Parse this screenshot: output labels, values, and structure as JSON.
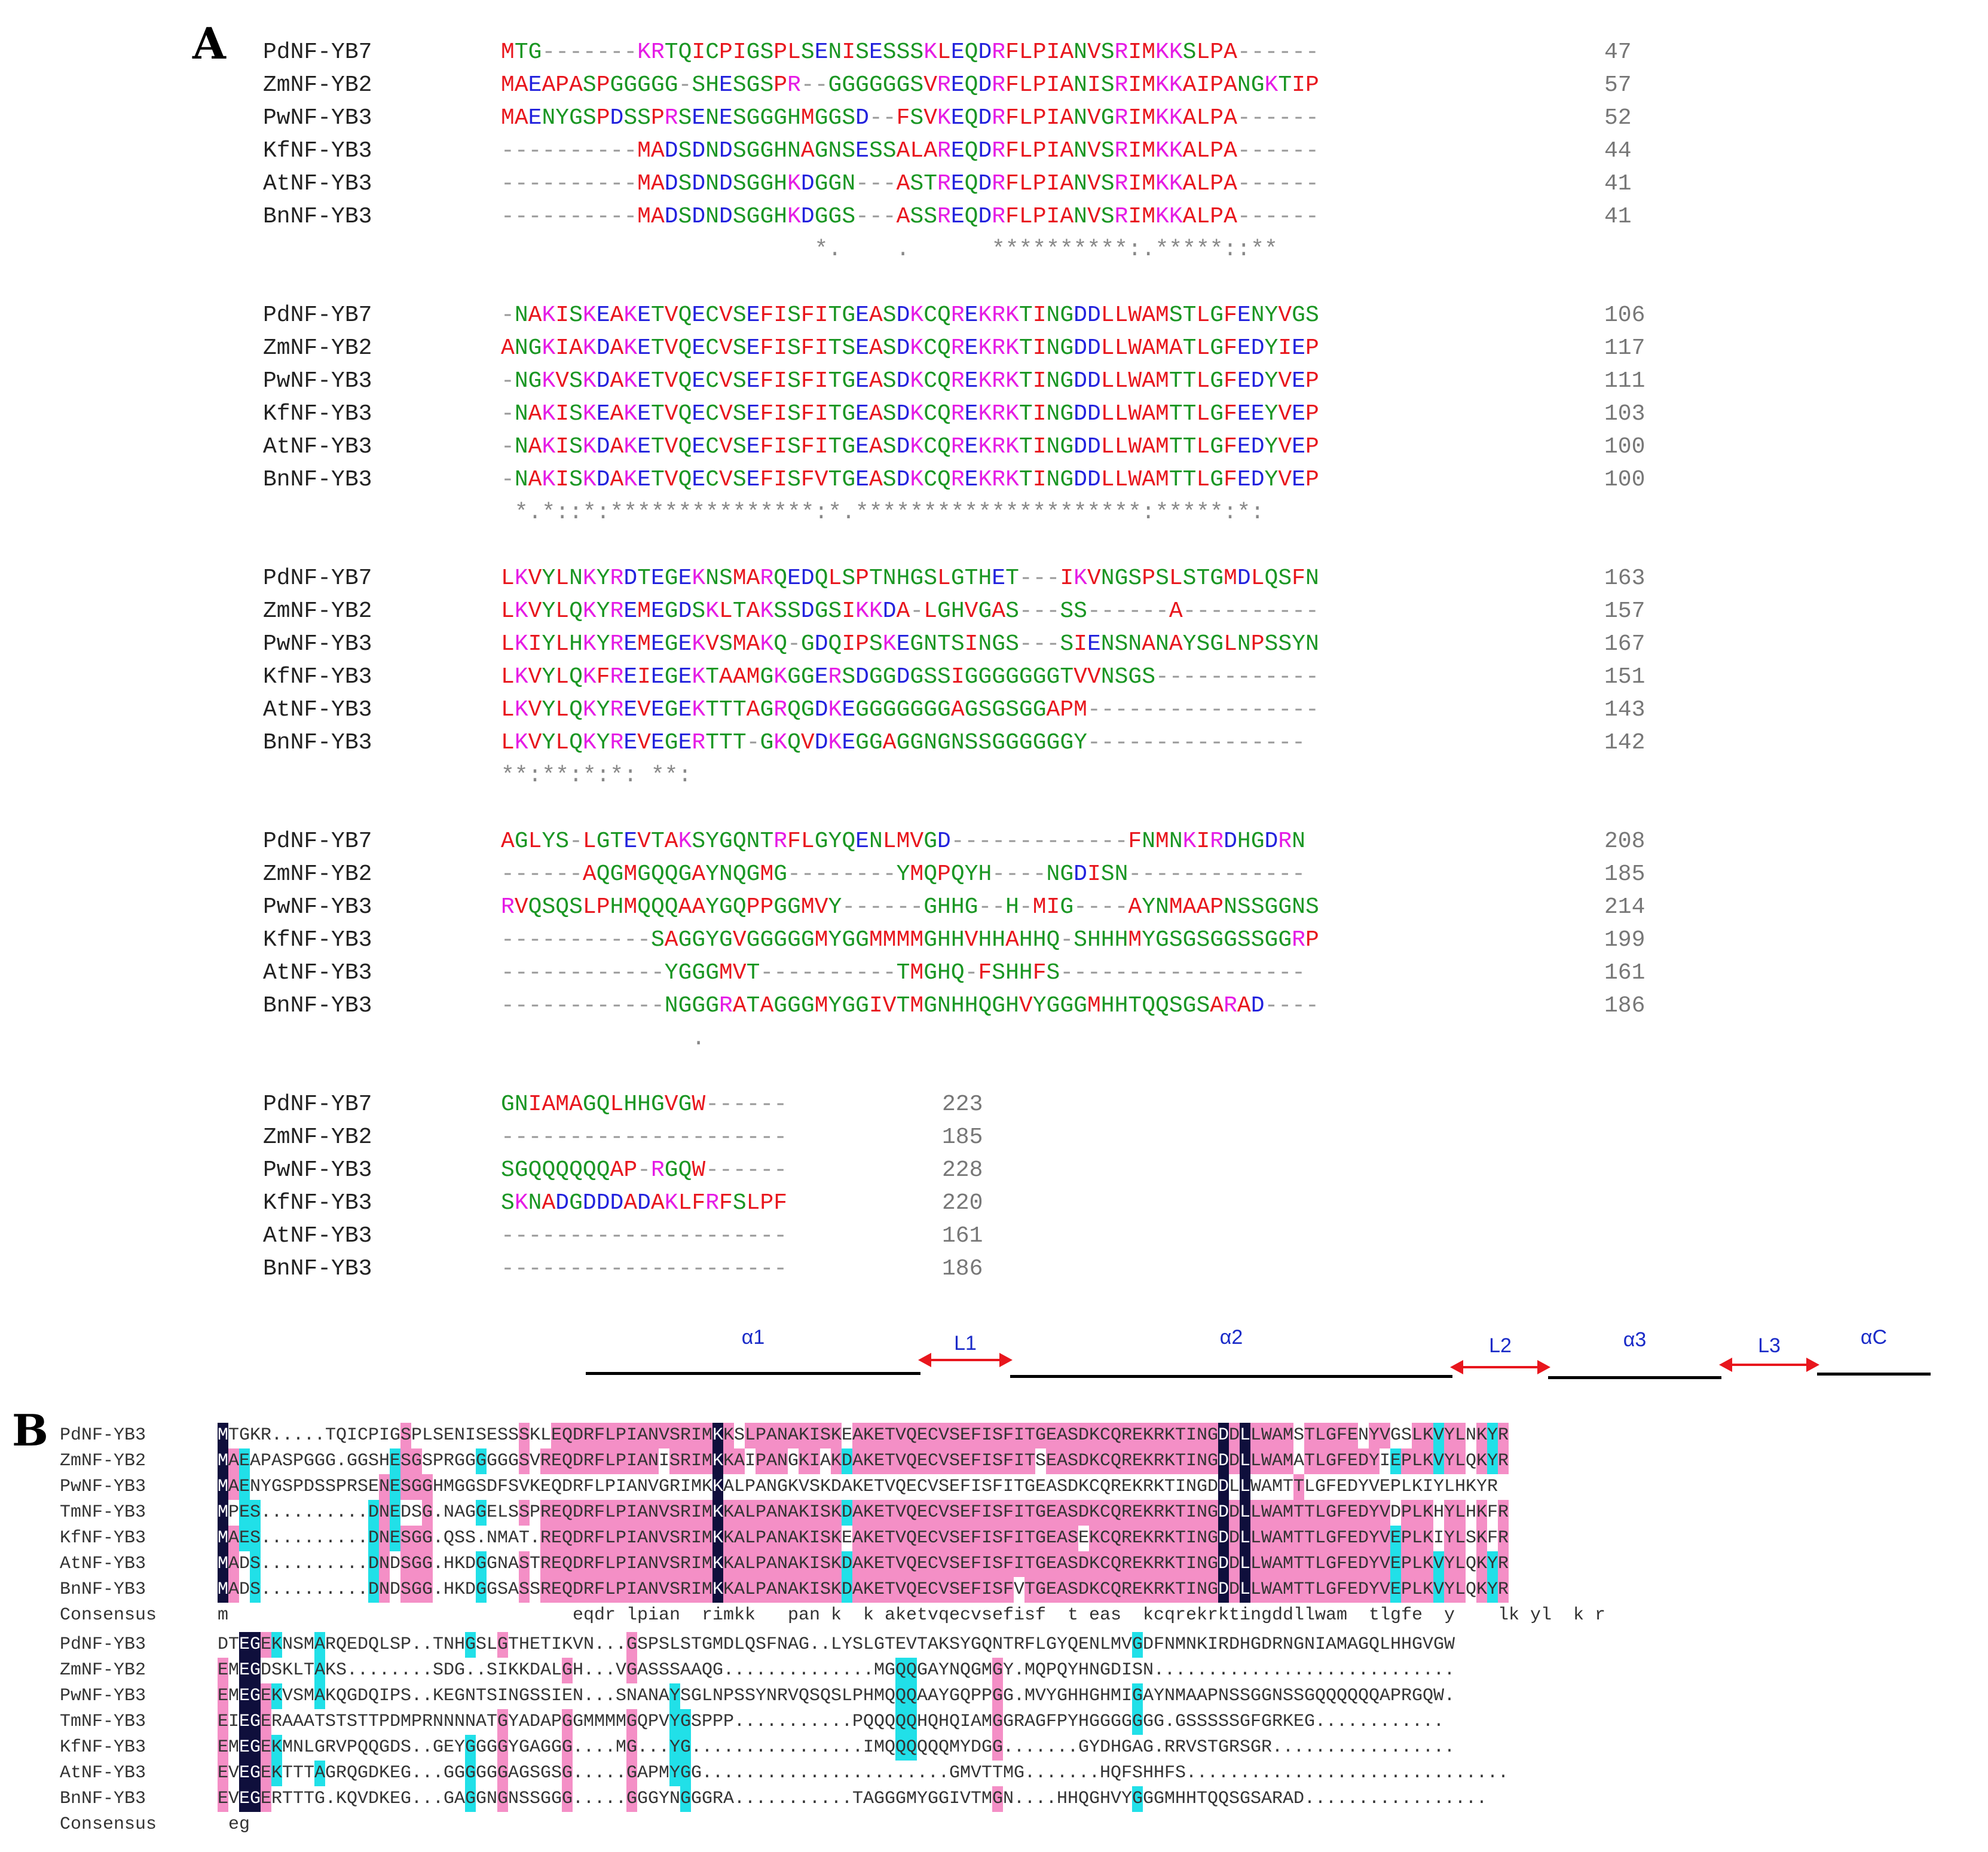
{
  "panel_a": {
    "label": "A",
    "blocks": [
      {
        "rows": [
          {
            "name": "PdNF-YB7",
            "seq": "MTG-------KRTQICPIGSPLSENISESSSKLEQDRFLPIANVSRIMKKSLPA------",
            "num": "47"
          },
          {
            "name": "ZmNF-YB2",
            "seq": "MAEAPASPGGGGG-SHESGSPR--GGGGGGSVREQDRFLPIANISRIMKKAIPANGKTIP",
            "num": "57"
          },
          {
            "name": "PwNF-YB3",
            "seq": "MAENYGSPDSSPRSENESGGGHMGGSD--FSVKEQDRFLPIANVGRIMKKALPA------",
            "num": "52"
          },
          {
            "name": "KfNF-YB3",
            "seq": "----------MADSDNDSGGHNAGNSESSALAREQDRFLPIANVSRIMKKALPA------",
            "num": "44"
          },
          {
            "name": "AtNF-YB3",
            "seq": "----------MADSDNDSGGHKDGGN---ASTREQDRFLPIANVSRIMKKALPA------",
            "num": "41"
          },
          {
            "name": "BnNF-YB3",
            "seq": "----------MADSDNDSGGHKDGGS---ASSREQDRFLPIANVSRIMKKALPA------",
            "num": "41"
          }
        ],
        "consensus": "                       *.    .      **********:.*****::**"
      },
      {
        "rows": [
          {
            "name": "PdNF-YB7",
            "seq": "-NAKISKEAKETVQECVSEFISFITGEASDKCQREKRKTINGDDLLWAMSTLGFENYVGS",
            "num": "106"
          },
          {
            "name": "ZmNF-YB2",
            "seq": "ANGKIAKDAKETVQECVSEFISFITSEASDKCQREKRKTINGDDLLWAMATLGFEDYIEP",
            "num": "117"
          },
          {
            "name": "PwNF-YB3",
            "seq": "-NGKVSKDAKETVQECVSEFISFITGEASDKCQREKRKTINGDDLLWAMTTLGFEDYVEP",
            "num": "111"
          },
          {
            "name": "KfNF-YB3",
            "seq": "-NAKISKEAKETVQECVSEFISFITGEASDKCQREKRKTINGDDLLWAMTTLGFEEYVEP",
            "num": "103"
          },
          {
            "name": "AtNF-YB3",
            "seq": "-NAKISKDAKETVQECVSEFISFITGEASDKCQREKRKTINGDDLLWAMTTLGFEDYVEP",
            "num": "100"
          },
          {
            "name": "BnNF-YB3",
            "seq": "-NAKISKDAKETVQECVSEFISFVTGEASDKCQREKRKTINGDDLLWAMTTLGFEDYVEP",
            "num": "100"
          }
        ],
        "consensus": " *.*::*:***************:*.*********************:*****:*:"
      },
      {
        "rows": [
          {
            "name": "PdNF-YB7",
            "seq": "LKVYLNKYRDTEGEKNSMARQEDQLSPTNHGSLGTHET---IKVNGSPSLSTGMDLQSFN",
            "num": "163"
          },
          {
            "name": "ZmNF-YB2",
            "seq": "LKVYLQKYREMEGDSKLTAKSSDGSIKKDA-LGHVGAS---SS------A----------",
            "num": "157"
          },
          {
            "name": "PwNF-YB3",
            "seq": "LKIYLHKYREMEGEKVSMAKQ-GDQIPSKEGNTSINGS---SIENSNANAYSGLNPSSYN",
            "num": "167"
          },
          {
            "name": "KfNF-YB3",
            "seq": "LKVYLQKFREIEGEKTAAMGKGGERSDGGDGSSIGGGGGGGTVVNSGS------------",
            "num": "151"
          },
          {
            "name": "AtNF-YB3",
            "seq": "LKVYLQKYREVEGEKTTTAGRQGDKEGGGGGGGAGSGSGGAPM-----------------",
            "num": "143"
          },
          {
            "name": "BnNF-YB3",
            "seq": "LKVYLQKYREVEGERTTT-GKQVDKEGGAGGNGNSSGGGGGGY----------------",
            "num": "142"
          }
        ],
        "consensus": "**:**:*:*: **:"
      },
      {
        "rows": [
          {
            "name": "PdNF-YB7",
            "seq": "AGLYS-LGTEVTAKSYGQNTRFLGYQENLMVGD-------------FNMNKIRDHGDRN",
            "num": "208"
          },
          {
            "name": "ZmNF-YB2",
            "seq": "------AQGMGQQGAYNQGMG--------YMQPQYH----NGDISN-------------",
            "num": "185"
          },
          {
            "name": "PwNF-YB3",
            "seq": "RVQSQSLPHMQQQAAYGQPPGGMVY------GHHG--H-MIG----AYNMAAPNSSGGNS",
            "num": "214"
          },
          {
            "name": "KfNF-YB3",
            "seq": "-----------SAGGYGVGGGGGMYGGMMMMGHHVHHAHHQ-SHHHMYGSGSGGSSGGRP",
            "num": "199"
          },
          {
            "name": "AtNF-YB3",
            "seq": "------------YGGGMVT----------TMGHQ-FSHHFS------------------",
            "num": "161"
          },
          {
            "name": "BnNF-YB3",
            "seq": "------------NGGGRATAGGGMYGGIVTMGNHHQGHVYGGGMHHTQQSGSARAD----",
            "num": "186"
          }
        ],
        "consensus": "              ."
      },
      {
        "rows": [
          {
            "name": "PdNF-YB7",
            "seq": "GNIAMAGQLHHGVGW------",
            "num": "223"
          },
          {
            "name": "ZmNF-YB2",
            "seq": "---------------------",
            "num": "185"
          },
          {
            "name": "PwNF-YB3",
            "seq": "SGQQQQQQAP-RGQW------",
            "num": "228"
          },
          {
            "name": "KfNF-YB3",
            "seq": "SKNADGDDDADAKLFRFSLPF",
            "num": "220"
          },
          {
            "name": "AtNF-YB3",
            "seq": "---------------------",
            "num": "161"
          },
          {
            "name": "BnNF-YB3",
            "seq": "---------------------",
            "num": "186"
          }
        ],
        "consensus": ""
      }
    ]
  },
  "panel_b": {
    "label": "B",
    "annotations": [
      {
        "label": "α1",
        "type": "helix"
      },
      {
        "label": "L1",
        "type": "loop"
      },
      {
        "label": "α2",
        "type": "helix"
      },
      {
        "label": "L2",
        "type": "loop"
      },
      {
        "label": "α3",
        "type": "helix"
      },
      {
        "label": "L3",
        "type": "loop"
      },
      {
        "label": "αC",
        "type": "helix"
      }
    ],
    "blocks": [
      {
        "rows": [
          {
            "name": "PdNF-YB3",
            "seq": "MTGKR.....TQICPIGSPLSENISESSSKLEQDRFLPIANVSRIMKKSLPANAKISKEAKETVQECVSEFISFITGEASDKCQREKRKTINGDDLLWAMSTLGFENYVGSLKVYLNKYR"
          },
          {
            "name": "ZmNF-YB2",
            "seq": "MAEAPASPGGG.GGSHESGSPRGGGGGGSVREQDRFLPIANISRIMKKAIPANGKIAKDAKETVQECVSEFISFITSEASDKCQREKRKTINGDDLLWAMATLGFEDYIEPLKVYLQKYR"
          },
          {
            "name": "PwNF-YB3",
            "seq": "MAENYGSPDSSPRSENESGGHMGGSDFSVKEQDRFLPIANVGRIMKKALPANGKVSKDAKETVQECVSEFISFITGEASDKCQREKRKTINGDDLLWAMTTLGFEDYVEPLKIYLHKYR"
          },
          {
            "name": "TmNF-YB3",
            "seq": "MPES..........DNEDSG.NAGGELSSPREQDRFLPIANVSRIMKKALPANAKISKDAKETVQECVSEFISFITGEASDKCQREKRKTINGDDLLWAMTTLGFEDYVDPLKHYLHKFR"
          },
          {
            "name": "KfNF-YB3",
            "seq": "MAES..........DNESGG.QSS.NMAT.REQDRFLPIANVSRIMKKALPANAKISKEAKETVQECVSEFISFITGEASEKCQREKRKTINGDDLLWAMTTLGFEDYVEPLKIYLSKFR"
          },
          {
            "name": "AtNF-YB3",
            "seq": "MADS..........DNDSGG.HKDGGNASTREQDRFLPIANVSRIMKKALPANAKISKDAKETVQECVSEFISFITGEASDKCQREKRKTINGDDLLWAMTTLGFEDYVEPLKVYLQKYR"
          },
          {
            "name": "BnNF-YB3",
            "seq": "MADS..........DNDSGG.HKDGGSASSREQDRFLPIANVSRIMKKALPANAKISKDAKETVQECVSEFISFVTGEASDKCQREKRKTINGDDLLWAMTTLGFEDYVEPLKVYLQKYR"
          }
        ],
        "consensus_label": "Consensus",
        "consensus": "m                                eqdr lpian  rimkk   pan k  k aketvqecvsefisf  t eas  kcqrekrktingddllwam  tlgfe  y    lk yl  k r"
      },
      {
        "rows": [
          {
            "name": "PdNF-YB3",
            "seq": "DTEGEKNSMARQEDQLSP..TNHGSLGTHETIKVN...GSPSLSTGMDLQSFNAG..LYSLGTEVTAKSYGQNTRFLGYQENLMVGDFNMNKIRDHGDRNGNIAMAGQLHHGVGW"
          },
          {
            "name": "ZmNF-YB2",
            "seq": "EMEGDSKLTAKS........SDG..SIKKDALGH...VGASSSAAQG..............MGQQGAYNQGMGY.MQPQYHNGDISN............................"
          },
          {
            "name": "PwNF-YB3",
            "seq": "EMEGEKVSMAKQGDQIPS..KEGNTSINGSSIEN...SNANAYSGLNPSSYNRVQSQSLPHMQQQAAYGQPPGG.MVYGHHGHMIGAYNMAAPNSSGGNSSGQQQQQQAPRGQW."
          },
          {
            "name": "TmNF-YB3",
            "seq": "EIEGERAAATSTSTTPDMPRNNNNATGYADAPGGMMMMGQPVYGSPPP...........PQQQQQHQHQIAMGGRAGFPYHGGGGGGG.GSSSSSGFGRKEG............"
          },
          {
            "name": "KfNF-YB3",
            "seq": "EMEGEKMNLGRVPQQGDS..GEYGGGGYGAGGG....MG...YG................IMQQQQQQMYDGG.......GYDHGAG.RRVSTGRSGR................."
          },
          {
            "name": "AtNF-YB3",
            "seq": "EVEGEKTTTAGRQGDKEG...GGGGGGAGSGSG.....GAPMYGG.......................GMVTTMG.......HQFSHHFS.............................."
          },
          {
            "name": "BnNF-YB3",
            "seq": "EVEGERTTTG.KQVDKEG...GAGGNGNSSGGG.....GGGYNGGGRA...........TAGGGMYGGIVTMGN....HHQGHVYGGGMHHTQQSGSARAD................."
          }
        ],
        "consensus_label": "Consensus",
        "consensus": " eg"
      }
    ]
  }
}
